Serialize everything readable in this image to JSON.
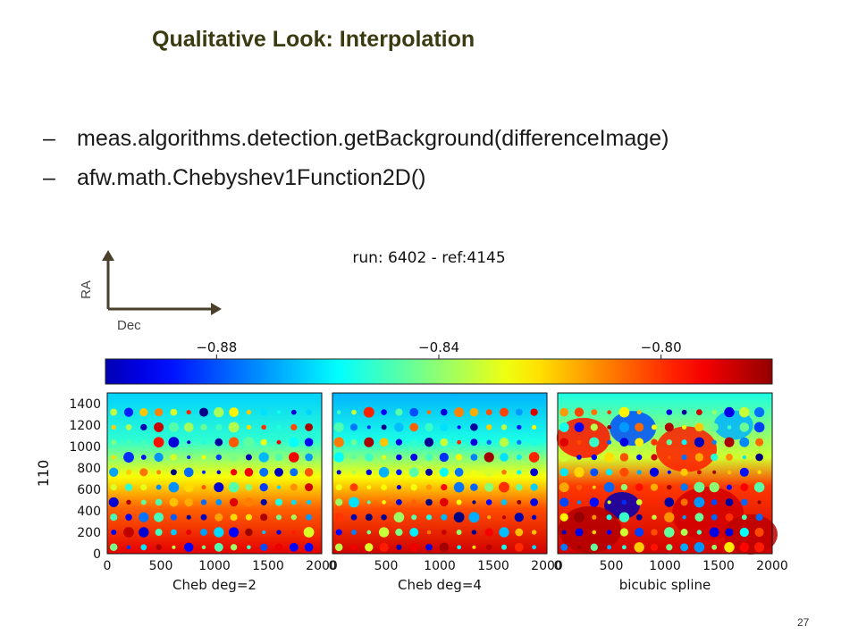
{
  "slide": {
    "title": "Qualitative Look: Interpolation",
    "bullets": [
      {
        "dash": "–",
        "text": "meas.algorithms.detection.getBackground(differenceImage)"
      },
      {
        "dash": "–",
        "text": "afw.math.Chebyshev1Function2D()"
      }
    ],
    "page_number": "27"
  },
  "orientation": {
    "ra_label": "RA",
    "dec_label": "Dec"
  },
  "chart_data": {
    "type": "heatmap",
    "title": "run: 6402 - ref:4145",
    "colormap": "jet",
    "colorbar": {
      "ticks": [
        -0.88,
        -0.84,
        -0.8
      ],
      "tick_labels": [
        "−0.88",
        "−0.84",
        "−0.80"
      ],
      "range": [
        -0.9,
        -0.78
      ]
    },
    "ylabel": "110",
    "y_ticks": [
      "0",
      "200",
      "400",
      "600",
      "800",
      "1000",
      "1200",
      "1400"
    ],
    "panels": [
      {
        "xlabel": "Cheb deg=2",
        "x_ticks": [
          "0",
          "500",
          "1000",
          "1500",
          "2000"
        ]
      },
      {
        "xlabel": "Cheb deg=4",
        "x_ticks": [
          "0",
          "500",
          "1000",
          "1500",
          "2000"
        ]
      },
      {
        "xlabel": "bicubic spline",
        "x_ticks": [
          "0",
          "500",
          "1000",
          "1500",
          "2000"
        ]
      }
    ]
  }
}
